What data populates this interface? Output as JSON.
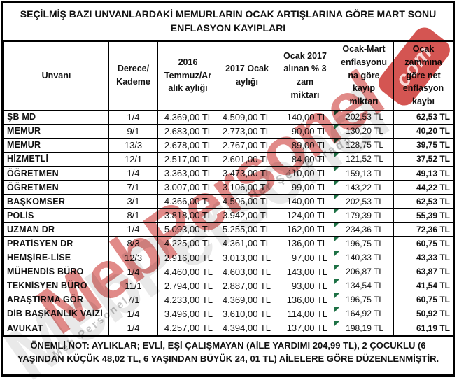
{
  "title": "SEÇİLMİŞ BAZI UNVANLARDAKİ MEMURLARIN OCAK ARTIŞLARINA GÖRE MART SONU ENFLASYON KAYIPLARI",
  "table": {
    "columns": [
      "Unvanı",
      "Derece/\nKademe",
      "2016\nTemmuz/Ar\nalık aylığı",
      "2017 Ocak\naylığı",
      "Ocak 2017\nalınan % 3\nzam\nmiktarı",
      "Ocak-Mart\nenflasyonu\nna göre\nkayıp\nmiktarı",
      "Ocak\nzammına\ngöre net\nenflasyon\nkaybı"
    ],
    "rows": [
      [
        "ŞB MD",
        "1/4",
        "4.369,00 TL",
        "4.509,00 TL",
        "140,00 TL",
        "202,53 TL",
        "62,53 TL"
      ],
      [
        "MEMUR",
        "9/1",
        "2.683,00 TL",
        "2.773,00 TL",
        "90,00 TL",
        "130,20 TL",
        "40,20 TL"
      ],
      [
        "MEMUR",
        "13/3",
        "2.678,00 TL",
        "2.767,00 TL",
        "89,00 TL",
        "128,75 TL",
        "39,75 TL"
      ],
      [
        "HİZMETLİ",
        "12/1",
        "2.517,00 TL",
        "2.601,00 TL",
        "84,00 TL",
        "121,52 TL",
        "37,52 TL"
      ],
      [
        "ÖĞRETMEN",
        "1/4",
        "3.363,00 TL",
        "3.473,00 TL",
        "110,00 TL",
        "159,13 TL",
        "49,13 TL"
      ],
      [
        "ÖĞRETMEN",
        "7/1",
        "3.007,00 TL",
        "3.106,00 TL",
        "99,00 TL",
        "143,22 TL",
        "44,22 TL"
      ],
      [
        "BAŞKOMSER",
        "3/1",
        "4.366,00 TL",
        "4.506,00 TL",
        "140,00 TL",
        "202,53 TL",
        "62,53 TL"
      ],
      [
        "POLİS",
        "8/1",
        "3.818,00 TL",
        "3.942,00 TL",
        "124,00 TL",
        "179,39 TL",
        "55,39 TL"
      ],
      [
        "UZMAN DR",
        "1/4",
        "5.093,00 TL",
        "5.255,00 TL",
        "162,00 TL",
        "234,36 TL",
        "72,36 TL"
      ],
      [
        "PRATİSYEN DR",
        "8/3",
        "4.225,00 TL",
        "4.361,00 TL",
        "136,00 TL",
        "196,75 TL",
        "60,75 TL"
      ],
      [
        "HEMŞİRE-LİSE",
        "12/3",
        "2.916,00 TL",
        "3.013,00 TL",
        "97,00 TL",
        "140,33 TL",
        "43,33 TL"
      ],
      [
        "MÜHENDİS BÜRO",
        "1/4",
        "4.460,00 TL",
        "4.603,00 TL",
        "143,00 TL",
        "206,87 TL",
        "63,87 TL"
      ],
      [
        "TEKNİSYEN BÜRO",
        "11/1",
        "2.794,00 TL",
        "2.887,00 TL",
        "93,00 TL",
        "134,54 TL",
        "41,54 TL"
      ],
      [
        "ARAŞTIRMA GÖR",
        "7/1",
        "4.233,00 TL",
        "4.369,00 TL",
        "136,00 TL",
        "196,75 TL",
        "60,75 TL"
      ],
      [
        "DİB BAŞKANLIK VAİZİ",
        "1/4",
        "3.496,00 TL",
        "3.610,00 TL",
        "114,00 TL",
        "164,92 TL",
        "50,92 TL"
      ],
      [
        "AVUKAT",
        "1/4",
        "4.257,00 TL",
        "4.394,00 TL",
        "137,00 TL",
        "198,19 TL",
        "61,19 TL"
      ]
    ]
  },
  "note": "ÖNEMLİ NOT: AYLIKLAR; EVLİ, EŞİ ÇALIŞMAYAN (AİLE YARDIMI 204,99 TL), 2 ÇOCUKLU (6 YAŞINDAN KÜÇÜK 48,02 TL, 6 YAŞINDAN BÜYÜK 24, 01 TL) AİLELERE GÖRE DÜZENLENMİŞTİR.",
  "watermark": {
    "primary": "MebPersonel",
    "badge": "com",
    "tagline_left": "Meb Personel",
    "tagline_right": "Her Şey Burada",
    "red": "#cd3c38",
    "marker_green": "#1e7145"
  }
}
